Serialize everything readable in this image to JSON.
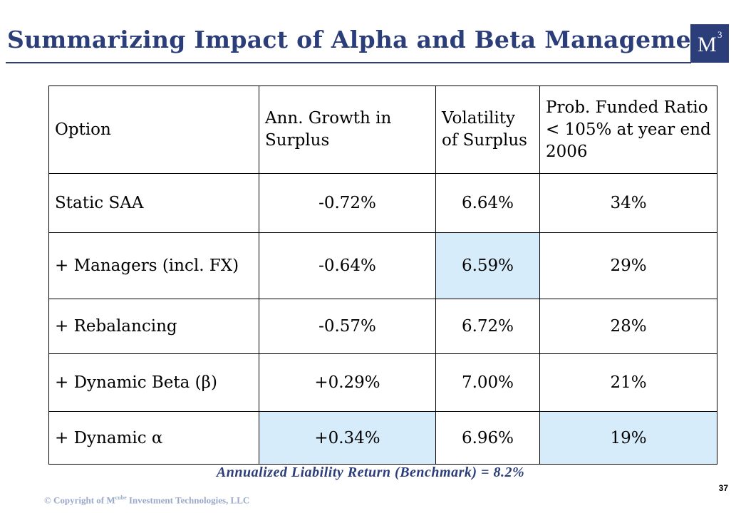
{
  "slide": {
    "title": "Summarizing Impact of Alpha and Beta Management",
    "logo": {
      "letter": "M",
      "superscript": "3"
    },
    "page_number": "37"
  },
  "table": {
    "headers": [
      "Option",
      "Ann. Growth in Surplus",
      "Volatility of Surplus",
      "Prob. Funded Ratio < 105% at year end 2006"
    ],
    "rows": [
      {
        "option": "Static SAA",
        "growth": "-0.72%",
        "volatility": "6.64%",
        "prob": "34%"
      },
      {
        "option": "+ Managers (incl. FX)",
        "growth": "-0.64%",
        "volatility": "6.59%",
        "prob": "29%"
      },
      {
        "option": "+ Rebalancing",
        "growth": "-0.57%",
        "volatility": "6.72%",
        "prob": "28%"
      },
      {
        "option": "+ Dynamic Beta (β)",
        "growth": "+0.29%",
        "volatility": "7.00%",
        "prob": "21%"
      },
      {
        "option": "+ Dynamic α",
        "growth": "+0.34%",
        "volatility": "6.96%",
        "prob": "19%"
      }
    ],
    "highlighted_cells": [
      "row2-volatility",
      "row5-growth",
      "row5-prob"
    ]
  },
  "footnote": "Annualized Liability Return (Benchmark) = 8.2%",
  "copyright": {
    "prefix": "© Copyright of M",
    "superscript": "cube",
    "suffix": " Investment Technologies, LLC"
  },
  "colors": {
    "title": "#2c3e7a",
    "highlight": "#d6ecfa",
    "copyright": "#9aa9c9"
  }
}
